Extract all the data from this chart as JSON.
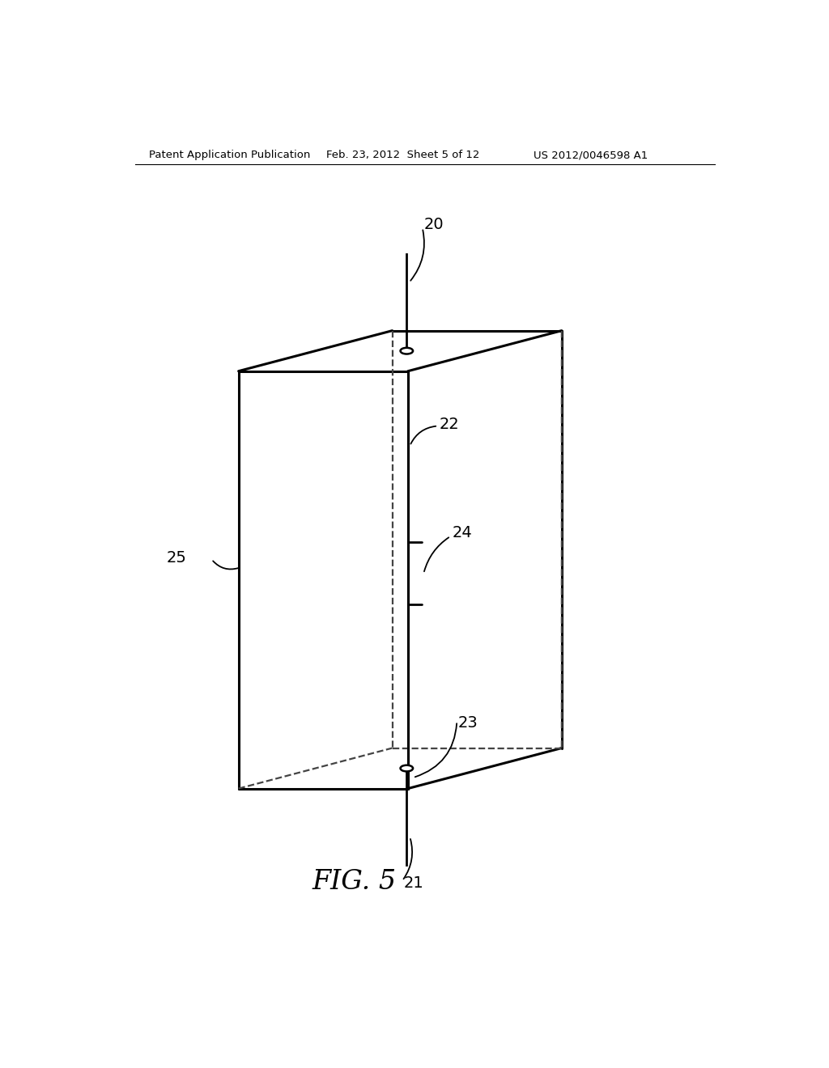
{
  "header_left": "Patent Application Publication",
  "header_center": "Feb. 23, 2012  Sheet 5 of 12",
  "header_right": "US 2012/0046598 A1",
  "fig_label": "FIG. 5",
  "background": "#ffffff",
  "line_color": "#000000",
  "dashed_color": "#444444",
  "label_20": "20",
  "label_21": "21",
  "label_22": "22",
  "label_23": "23",
  "label_24": "24",
  "label_25": "25"
}
